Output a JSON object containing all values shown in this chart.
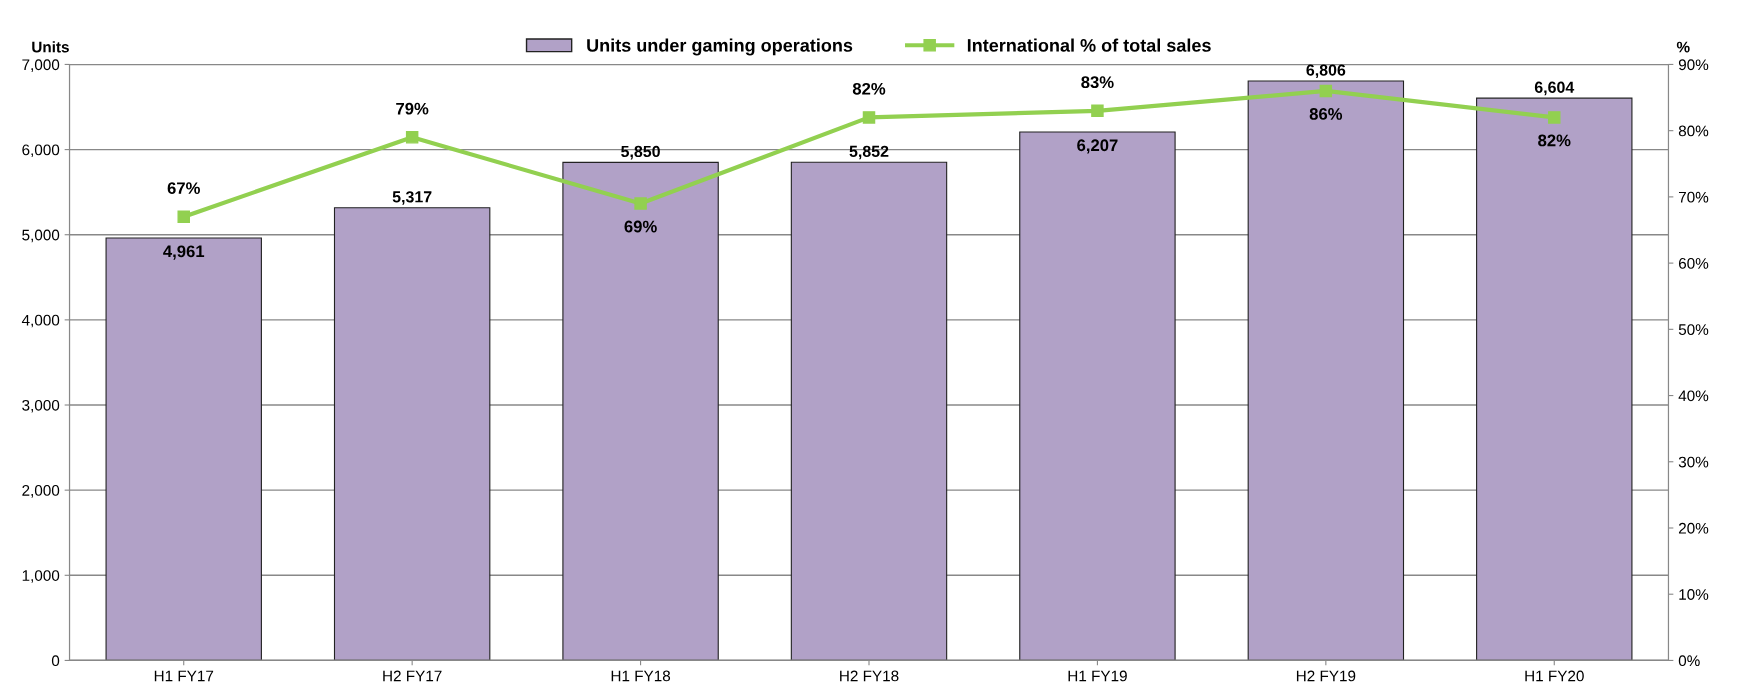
{
  "chart_data": {
    "type": "bar",
    "categories": [
      "H1 FY17",
      "H2 FY17",
      "H1 FY18",
      "H2 FY18",
      "H1 FY19",
      "H2 FY19",
      "H1 FY20"
    ],
    "ylabel": "Units",
    "y2label": "%",
    "series": [
      {
        "name": "Units under gaming operations",
        "type": "bar",
        "color": "#b1a1c7",
        "values": [
          4961,
          5317,
          5850,
          5852,
          6207,
          6806,
          6604
        ],
        "value_labels": [
          "4,961",
          "5,317",
          "5,850",
          "5,852",
          "6,207",
          "6,806",
          "6,604"
        ]
      },
      {
        "name": "International % of total sales",
        "type": "line",
        "axis": "y2",
        "color": "#92d050",
        "marker": "square",
        "values": [
          67,
          79,
          69,
          82,
          83,
          86,
          82
        ],
        "value_labels": [
          "67%",
          "79%",
          "69%",
          "82%",
          "83%",
          "86%",
          "82%"
        ]
      }
    ],
    "ylim": [
      0,
      7000
    ],
    "yticks": [
      {
        "value": 0,
        "label": "0"
      },
      {
        "value": 1000,
        "label": "1,000"
      },
      {
        "value": 2000,
        "label": "2,000"
      },
      {
        "value": 3000,
        "label": "3,000"
      },
      {
        "value": 4000,
        "label": "4,000"
      },
      {
        "value": 5000,
        "label": "5,000"
      },
      {
        "value": 6000,
        "label": "6,000"
      },
      {
        "value": 7000,
        "label": "7,000"
      }
    ],
    "y2lim": [
      0,
      90
    ],
    "y2ticks": [
      {
        "value": 0,
        "label": "0%"
      },
      {
        "value": 10,
        "label": "10%"
      },
      {
        "value": 20,
        "label": "20%"
      },
      {
        "value": 30,
        "label": "30%"
      },
      {
        "value": 40,
        "label": "40%"
      },
      {
        "value": 50,
        "label": "50%"
      },
      {
        "value": 60,
        "label": "60%"
      },
      {
        "value": 70,
        "label": "70%"
      },
      {
        "value": 80,
        "label": "80%"
      },
      {
        "value": 90,
        "label": "90%"
      }
    ],
    "grid": "y",
    "legend": "top"
  }
}
